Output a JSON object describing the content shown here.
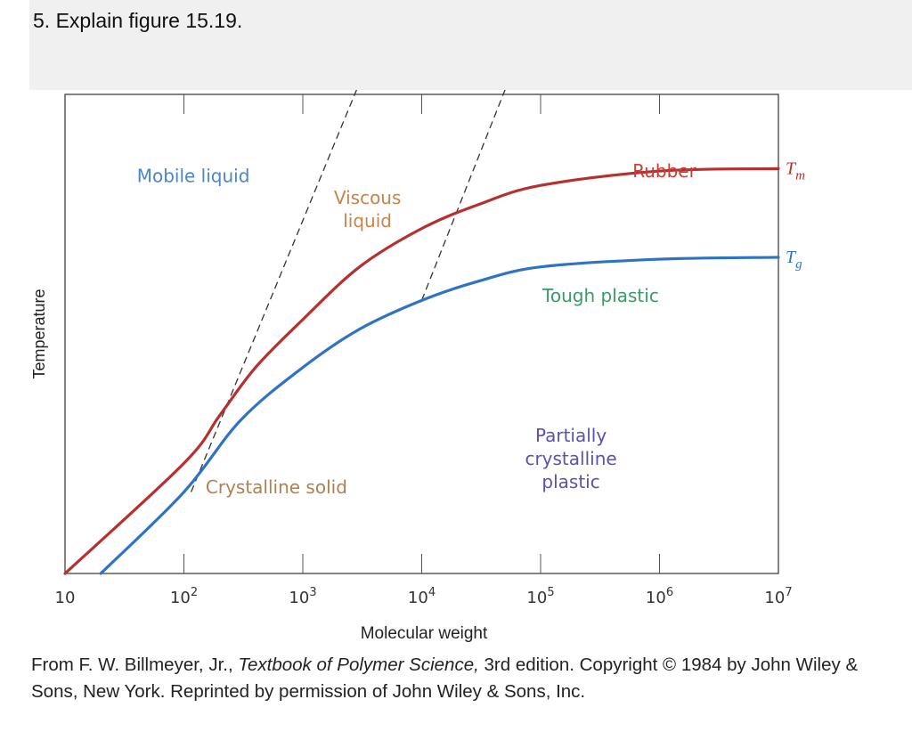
{
  "question": {
    "text": "5. Explain figure 15.19."
  },
  "chart_data": {
    "type": "line",
    "xscale": "log",
    "xlim": [
      10,
      10000000
    ],
    "ylim": [
      0,
      100
    ],
    "xlabel": "Molecular weight",
    "ylabel": "Temperature",
    "x_ticks": [
      {
        "base": "10",
        "exp": ""
      },
      {
        "base": "10",
        "exp": "2"
      },
      {
        "base": "10",
        "exp": "3"
      },
      {
        "base": "10",
        "exp": "4"
      },
      {
        "base": "10",
        "exp": "5"
      },
      {
        "base": "10",
        "exp": "6"
      },
      {
        "base": "10",
        "exp": "7"
      }
    ],
    "series": [
      {
        "name": "Tm",
        "label_main": "T",
        "label_sub": "m",
        "color": "#b5302f",
        "x": [
          10,
          100,
          200,
          400,
          1000,
          3000,
          10000,
          30000,
          100000,
          1000000,
          10000000
        ],
        "y": [
          0,
          23,
          33,
          43,
          53,
          64,
          72,
          77,
          81,
          84,
          84.5
        ]
      },
      {
        "name": "Tg",
        "label_main": "T",
        "label_sub": "g",
        "color": "#2f73c4",
        "x": [
          20,
          100,
          300,
          1000,
          3000,
          10000,
          30000,
          100000,
          1000000,
          10000000
        ],
        "y": [
          0,
          17,
          32,
          43,
          51,
          57,
          61,
          64,
          65.6,
          66
        ]
      }
    ],
    "dashed_lines": [
      {
        "points": [
          [
            115,
            17
          ],
          [
            4000,
            110
          ]
        ]
      },
      {
        "points": [
          [
            10000,
            57
          ],
          [
            70000,
            110
          ]
        ]
      }
    ],
    "regions": [
      {
        "text": [
          "Mobile liquid"
        ],
        "x": 120,
        "y": 83,
        "color": "#4a86c8"
      },
      {
        "text": [
          "Viscous",
          "liquid"
        ],
        "x": 3500,
        "y": 76,
        "color": "#c7844a"
      },
      {
        "text": [
          "Rubber"
        ],
        "x": 1100000,
        "y": 84,
        "color": "#cc3b33"
      },
      {
        "text": [
          "Tough plastic"
        ],
        "x": 320000,
        "y": 58,
        "color": "#3a9a6a"
      },
      {
        "text": [
          "Crystalline solid"
        ],
        "x": 600,
        "y": 18,
        "color": "#b08050"
      },
      {
        "text": [
          "Partially",
          "crystalline",
          "plastic"
        ],
        "x": 180000,
        "y": 24,
        "color": "#5a52b0"
      }
    ]
  },
  "caption": {
    "part1": "From F. W. Billmeyer, Jr., ",
    "book": "Textbook of Polymer Science,",
    "part2": " 3rd edition. Copyright © 1984 by John Wiley & Sons, New York. Reprinted by permission of John Wiley & Sons, Inc."
  }
}
